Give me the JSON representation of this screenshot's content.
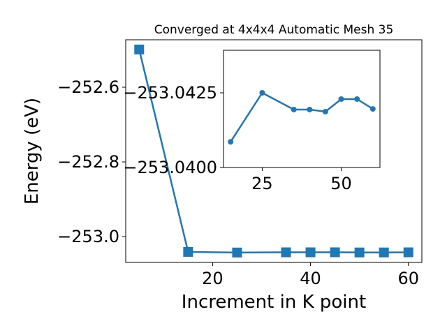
{
  "chart_data": [
    {
      "type": "line",
      "title": "Converged at 4x4x4 Automatic Mesh 35",
      "xlabel": "Increment in K point",
      "ylabel": "Energy (eV)",
      "x": [
        5,
        15,
        25,
        35,
        40,
        45,
        50,
        55,
        60
      ],
      "series": [
        {
          "color": "#1f77b4",
          "marker": "square",
          "values": [
            -252.499,
            -253.04086,
            -253.0425,
            -253.04194,
            -253.04194,
            -253.04187,
            -253.04229,
            -253.04229,
            -253.04196
          ]
        }
      ],
      "xlim": [
        2.25,
        62.75
      ],
      "ylim": [
        -253.069,
        -252.473
      ],
      "xticks": [
        20,
        40,
        60
      ],
      "yticks": [
        {
          "value": -253.0,
          "label": "−253.0"
        },
        {
          "value": -252.8,
          "label": "−252.8"
        },
        {
          "value": -252.6,
          "label": "−252.6"
        }
      ]
    },
    {
      "type": "line",
      "x": [
        15,
        25,
        35,
        40,
        45,
        50,
        55,
        60
      ],
      "series": [
        {
          "color": "#1f77b4",
          "marker": "circle",
          "values": [
            -253.04086,
            -253.0425,
            -253.04194,
            -253.04194,
            -253.04187,
            -253.04229,
            -253.04229,
            -253.04196
          ]
        }
      ],
      "xlim": [
        12.75,
        62.25
      ],
      "ylim": [
        -253.04,
        -253.043925
      ],
      "xticks": [
        25,
        50
      ],
      "yticks": [
        {
          "value": -253.04,
          "label": "−253.0400"
        },
        {
          "value": -253.0425,
          "label": "−253.0425"
        }
      ]
    }
  ]
}
